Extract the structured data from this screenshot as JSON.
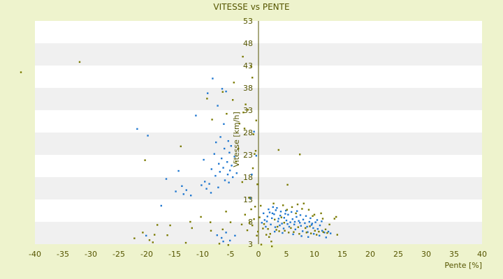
{
  "chart_data": {
    "type": "scatter",
    "title": "VITESSE vs PENTE",
    "xlabel": "Pente [%]",
    "ylabel": "Vitesse [km/h]",
    "xlim": [
      -40,
      40
    ],
    "ylim": [
      3,
      53
    ],
    "x_ticks": [
      "-40",
      "-35",
      "-30",
      "-25",
      "-20",
      "-15",
      "-10",
      "-5",
      "0",
      "5",
      "10",
      "15",
      "20",
      "25",
      "30",
      "35",
      "40"
    ],
    "y_ticks": [
      "3",
      "8",
      "13",
      "18",
      "23",
      "28",
      "33",
      "38",
      "43",
      "48",
      "53"
    ],
    "grid": "horizontal alternating bands",
    "legend": "none",
    "colors": {
      "background": "#eef3cd",
      "band_light": "#ffffff",
      "band_dark": "#f0f0f0",
      "axis": "#555500",
      "series_blue": "#1f77d0",
      "series_olive": "#7a7a00"
    },
    "series": [
      {
        "color": "#1f77d0",
        "points": [
          [
            -8.2,
            40.1
          ],
          [
            -6.5,
            37.8
          ],
          [
            -5.8,
            37.2
          ],
          [
            -9.1,
            36.8
          ],
          [
            -7.3,
            34.0
          ],
          [
            -11.2,
            31.8
          ],
          [
            -6.2,
            29.9
          ],
          [
            -21.7,
            28.8
          ],
          [
            -19.8,
            27.3
          ],
          [
            -6.8,
            27.0
          ],
          [
            -5.4,
            26.1
          ],
          [
            -7.6,
            25.8
          ],
          [
            -4.9,
            25.0
          ],
          [
            -6.1,
            24.4
          ],
          [
            -5.2,
            23.5
          ],
          [
            -7.9,
            23.2
          ],
          [
            -4.3,
            22.6
          ],
          [
            -6.6,
            22.2
          ],
          [
            -9.8,
            21.9
          ],
          [
            -5.6,
            21.4
          ],
          [
            -7.1,
            21.0
          ],
          [
            -4.8,
            20.6
          ],
          [
            -6.3,
            20.1
          ],
          [
            -8.4,
            19.8
          ],
          [
            -5.1,
            19.5
          ],
          [
            -14.3,
            19.4
          ],
          [
            -6.9,
            19.2
          ],
          [
            -3.9,
            18.9
          ],
          [
            -5.5,
            18.6
          ],
          [
            -7.7,
            18.3
          ],
          [
            -4.6,
            18.0
          ],
          [
            -16.5,
            17.6
          ],
          [
            -6.0,
            17.3
          ],
          [
            -9.6,
            17.0
          ],
          [
            -5.3,
            16.8
          ],
          [
            -8.8,
            16.5
          ],
          [
            -10.2,
            16.2
          ],
          [
            -13.7,
            16.0
          ],
          [
            -7.2,
            15.7
          ],
          [
            -9.3,
            15.4
          ],
          [
            -12.9,
            15.1
          ],
          [
            -14.8,
            14.8
          ],
          [
            -8.5,
            14.5
          ],
          [
            -13.4,
            14.2
          ],
          [
            -12.1,
            13.9
          ],
          [
            -17.4,
            11.6
          ],
          [
            -20.1,
            4.9
          ],
          [
            -5.8,
            5.6
          ],
          [
            -7.4,
            5.0
          ],
          [
            -6.6,
            4.4
          ],
          [
            -5.1,
            3.8
          ],
          [
            -4.2,
            4.9
          ],
          [
            -6.3,
            3.6
          ],
          [
            -1.5,
            13.3
          ],
          [
            -0.8,
            28.2
          ],
          [
            -0.4,
            22.8
          ],
          [
            -1.2,
            18.6
          ],
          [
            0.6,
            7.8
          ],
          [
            1.1,
            8.4
          ],
          [
            1.6,
            9.2
          ],
          [
            2.0,
            10.1
          ],
          [
            2.4,
            8.8
          ],
          [
            2.8,
            9.7
          ],
          [
            3.1,
            10.6
          ],
          [
            3.5,
            8.1
          ],
          [
            3.9,
            9.4
          ],
          [
            4.2,
            7.6
          ],
          [
            4.6,
            8.9
          ],
          [
            5.0,
            8.3
          ],
          [
            5.3,
            9.6
          ],
          [
            5.7,
            7.9
          ],
          [
            6.1,
            8.6
          ],
          [
            6.4,
            7.4
          ],
          [
            6.8,
            9.1
          ],
          [
            7.2,
            8.2
          ],
          [
            7.6,
            7.1
          ],
          [
            8.0,
            8.5
          ],
          [
            8.3,
            7.7
          ],
          [
            8.7,
            6.9
          ],
          [
            9.1,
            8.0
          ],
          [
            9.5,
            7.3
          ],
          [
            9.8,
            6.6
          ],
          [
            10.2,
            7.9
          ],
          [
            10.6,
            6.4
          ],
          [
            11.0,
            7.2
          ],
          [
            11.4,
            6.0
          ],
          [
            11.8,
            5.6
          ],
          [
            12.1,
            4.5
          ],
          [
            12.5,
            5.8
          ],
          [
            12.9,
            5.4
          ],
          [
            1.3,
            6.9
          ],
          [
            2.2,
            7.4
          ],
          [
            3.0,
            6.8
          ],
          [
            3.8,
            7.2
          ],
          [
            4.5,
            6.5
          ],
          [
            5.5,
            6.9
          ],
          [
            6.6,
            6.3
          ],
          [
            7.9,
            5.9
          ],
          [
            8.8,
            5.7
          ],
          [
            9.9,
            5.3
          ],
          [
            0.9,
            9.9
          ],
          [
            1.8,
            10.8
          ],
          [
            2.6,
            11.3
          ],
          [
            3.3,
            11.1
          ],
          [
            4.0,
            10.3
          ],
          [
            4.8,
            9.8
          ],
          [
            5.9,
            10.2
          ],
          [
            6.9,
            10.4
          ],
          [
            7.5,
            9.5
          ],
          [
            8.5,
            9.3
          ],
          [
            9.3,
            8.8
          ],
          [
            10.5,
            8.4
          ],
          [
            11.3,
            8.1
          ],
          [
            2.9,
            5.8
          ],
          [
            4.3,
            5.5
          ],
          [
            6.2,
            5.2
          ],
          [
            7.7,
            4.8
          ],
          [
            8.9,
            4.6
          ],
          [
            10.9,
            4.9
          ],
          [
            1.5,
            8.1
          ],
          [
            3.6,
            8.7
          ],
          [
            5.2,
            7.5
          ],
          [
            6.5,
            8.0
          ],
          [
            7.4,
            7.8
          ],
          [
            9.6,
            7.6
          ],
          [
            2.5,
            9.9
          ],
          [
            4.9,
            10.5
          ]
        ]
      },
      {
        "color": "#7a7a00",
        "points": [
          [
            -42.5,
            41.5
          ],
          [
            -32.0,
            43.8
          ],
          [
            -2.8,
            45.0
          ],
          [
            -1.3,
            42.8
          ],
          [
            -1.1,
            40.3
          ],
          [
            -4.4,
            39.2
          ],
          [
            -6.4,
            37.1
          ],
          [
            -9.2,
            35.6
          ],
          [
            -4.6,
            35.3
          ],
          [
            -2.3,
            34.3
          ],
          [
            -1.9,
            33.1
          ],
          [
            -2.7,
            32.5
          ],
          [
            -5.7,
            32.2
          ],
          [
            -8.3,
            30.9
          ],
          [
            -0.4,
            30.7
          ],
          [
            -3.4,
            30.0
          ],
          [
            -2.5,
            28.9
          ],
          [
            -0.9,
            27.6
          ],
          [
            -13.9,
            24.9
          ],
          [
            -3.6,
            24.4
          ],
          [
            -0.5,
            23.9
          ],
          [
            3.6,
            24.1
          ],
          [
            7.4,
            23.1
          ],
          [
            -0.7,
            23.2
          ],
          [
            -20.3,
            21.8
          ],
          [
            -4.0,
            21.5
          ],
          [
            -1.0,
            20.0
          ],
          [
            -2.9,
            16.9
          ],
          [
            -0.2,
            16.4
          ],
          [
            5.2,
            16.3
          ],
          [
            -1.7,
            13.4
          ],
          [
            -0.6,
            11.4
          ],
          [
            -1.3,
            10.8
          ],
          [
            -5.8,
            10.3
          ],
          [
            -2.4,
            9.6
          ],
          [
            -10.3,
            9.1
          ],
          [
            -12.2,
            8.0
          ],
          [
            -8.6,
            7.9
          ],
          [
            -5.0,
            7.9
          ],
          [
            -15.8,
            7.2
          ],
          [
            -3.0,
            7.4
          ],
          [
            -18.1,
            7.3
          ],
          [
            -11.9,
            6.6
          ],
          [
            -6.4,
            6.3
          ],
          [
            -8.5,
            6.0
          ],
          [
            -2.0,
            6.1
          ],
          [
            -20.7,
            5.6
          ],
          [
            -18.6,
            5.1
          ],
          [
            -16.3,
            5.0
          ],
          [
            -22.2,
            4.3
          ],
          [
            -19.5,
            3.9
          ],
          [
            -18.9,
            3.4
          ],
          [
            -13.0,
            3.3
          ],
          [
            -7.0,
            3.1
          ],
          [
            -5.4,
            2.8
          ],
          [
            -1.1,
            7.2
          ],
          [
            -0.3,
            4.9
          ],
          [
            0.4,
            11.6
          ],
          [
            0.8,
            6.5
          ],
          [
            1.4,
            5.1
          ],
          [
            1.9,
            4.6
          ],
          [
            2.3,
            3.6
          ],
          [
            2.7,
            12.1
          ],
          [
            3.2,
            6.2
          ],
          [
            3.7,
            5.9
          ],
          [
            4.4,
            11.7
          ],
          [
            4.7,
            6.0
          ],
          [
            5.4,
            5.6
          ],
          [
            6.0,
            11.3
          ],
          [
            6.3,
            5.7
          ],
          [
            7.0,
            11.9
          ],
          [
            7.3,
            5.3
          ],
          [
            7.8,
            10.9
          ],
          [
            8.1,
            12.1
          ],
          [
            8.6,
            5.6
          ],
          [
            9.0,
            10.7
          ],
          [
            9.4,
            5.4
          ],
          [
            9.7,
            9.3
          ],
          [
            10.1,
            6.0
          ],
          [
            10.8,
            5.8
          ],
          [
            11.2,
            9.9
          ],
          [
            11.6,
            5.7
          ],
          [
            12.3,
            5.5
          ],
          [
            12.7,
            7.4
          ],
          [
            13.6,
            8.7
          ],
          [
            14.1,
            5.1
          ],
          [
            13.9,
            9.1
          ],
          [
            0.2,
            9.0
          ],
          [
            1.0,
            7.5
          ],
          [
            1.7,
            6.4
          ],
          [
            2.1,
            5.3
          ],
          [
            2.9,
            8.5
          ],
          [
            3.4,
            6.9
          ],
          [
            4.1,
            9.0
          ],
          [
            4.6,
            7.8
          ],
          [
            5.1,
            10.7
          ],
          [
            5.8,
            6.6
          ],
          [
            6.7,
            9.9
          ],
          [
            7.1,
            6.8
          ],
          [
            8.4,
            6.6
          ],
          [
            9.2,
            7.0
          ],
          [
            10.0,
            9.6
          ],
          [
            10.4,
            5.1
          ],
          [
            11.5,
            8.7
          ],
          [
            12.0,
            6.3
          ],
          [
            0.5,
            2.9
          ],
          [
            2.4,
            2.5
          ],
          [
            -0.1,
            5.8
          ],
          [
            -0.8,
            8.6
          ],
          [
            -1.6,
            7.8
          ]
        ]
      }
    ]
  }
}
